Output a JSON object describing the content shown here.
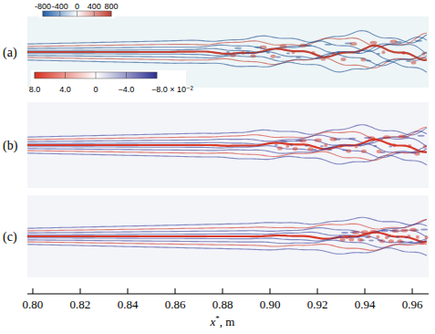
{
  "chart_data": {
    "type": "field",
    "panels": [
      {
        "label": "(a)"
      },
      {
        "label": "(b)"
      },
      {
        "label": "(c)"
      }
    ],
    "x_label": "x*, m",
    "xlim": [
      0.7977,
      0.9669
    ],
    "xticks": [
      {
        "value": 0.8,
        "label": "0.80"
      },
      {
        "value": 0.82,
        "label": "0.82"
      },
      {
        "value": 0.84,
        "label": "0.84"
      },
      {
        "value": 0.86,
        "label": "0.86"
      },
      {
        "value": 0.88,
        "label": "0.88"
      },
      {
        "value": 0.9,
        "label": "0.90"
      },
      {
        "value": 0.92,
        "label": "0.92"
      },
      {
        "value": 0.94,
        "label": "0.94"
      },
      {
        "value": 0.96,
        "label": "0.96"
      }
    ],
    "colorbars": [
      {
        "range": [
          -800,
          800
        ],
        "ticks": [
          -800,
          -400,
          0,
          400,
          800
        ],
        "colors": [
          "#1c5ea8",
          "#ffffff",
          "#c0392b"
        ]
      },
      {
        "range": [
          0.08,
          -0.08
        ],
        "ticks": [
          {
            "value": 0.08,
            "label": "8.0"
          },
          {
            "value": 0.04,
            "label": "4.0"
          },
          {
            "value": 0,
            "label": "0"
          },
          {
            "value": -0.04,
            "label": "−4.0"
          },
          {
            "value": -0.08,
            "label": "−8.0 × 10⁻²"
          }
        ],
        "colors": [
          "#d7301f",
          "#ffffff",
          "#2b2f8f"
        ]
      }
    ]
  }
}
